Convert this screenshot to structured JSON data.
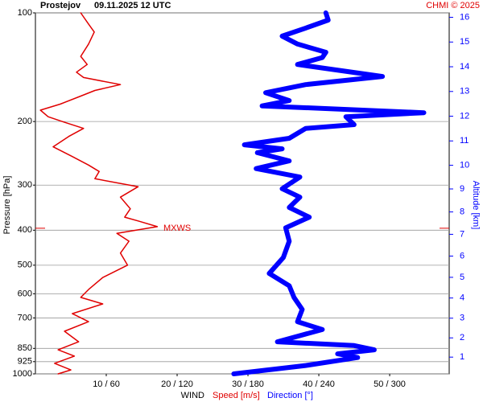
{
  "chart_data": {
    "type": "line",
    "title": "Prostejov",
    "subtitle": "09.11.2025 12 UTC",
    "credit": "CHMI © 2025",
    "ylabel": "Pressure [hPa]",
    "y2label": "Altitude [km]",
    "xlabel": "WIND",
    "ylim": [
      100,
      1000
    ],
    "ylog": true,
    "yticks": [
      100,
      200,
      300,
      400,
      500,
      600,
      700,
      850,
      925,
      1000
    ],
    "grid": true,
    "xlim": [
      0,
      58.4
    ],
    "x2lim": [
      0,
      350.5
    ],
    "xticks": [
      {
        "value": 10,
        "label": "10 / 60"
      },
      {
        "value": 20,
        "label": "20 / 120"
      },
      {
        "value": 30,
        "label": "30 / 180"
      },
      {
        "value": 40,
        "label": "40 / 240"
      },
      {
        "value": 50,
        "label": "50 / 300"
      }
    ],
    "y2scale": "standard-atmosphere",
    "y2color": "#0000ff",
    "y2ticks": [
      1,
      2,
      3,
      4,
      5,
      6,
      7,
      8,
      9,
      10,
      11,
      12,
      13,
      14,
      15,
      16
    ],
    "annotation": {
      "text": "MXWS",
      "pressure": 395,
      "color": "#e00000"
    },
    "series": [
      {
        "name": "Speed [m/s]",
        "color": "#e00000",
        "width": 1.5,
        "values": [
          6.4,
          7.5,
          8.3,
          7.5,
          6.4,
          7.3,
          5.8,
          6.8,
          12,
          8.4,
          6.4,
          3.5,
          0.7,
          1.8,
          4.1,
          6.8,
          4.7,
          2.5,
          5.2,
          7.5,
          9,
          8.4,
          14.5,
          12,
          13.4,
          12.6,
          14.5,
          17.2,
          11.5,
          13.2,
          12,
          13,
          9.5,
          7.5,
          6.4,
          9.5,
          5.2,
          7.5,
          4.1,
          6.1,
          3.2,
          5.5,
          2.7,
          5,
          3.2
        ],
        "pressure": [
          100,
          107.4,
          113,
          122,
          132,
          139,
          146,
          151,
          158,
          164,
          170,
          179,
          186,
          194,
          201,
          209,
          220,
          235,
          250,
          264,
          275,
          288,
          303,
          324,
          349,
          368,
          377,
          391,
          408,
          429,
          463,
          500,
          541,
          584,
          614,
          640,
          681,
          717,
          762,
          815,
          858,
          893,
          935,
          975,
          1000
        ]
      },
      {
        "name": "Direction [°]",
        "color": "#0000ff",
        "width": 6,
        "axis": "x2",
        "values": [
          246,
          248,
          229,
          209,
          222,
          246,
          243,
          222,
          294,
          229,
          195,
          215,
          192,
          329,
          263,
          270,
          229,
          215,
          177,
          209,
          188,
          215,
          187,
          224,
          209,
          224,
          215,
          232,
          212,
          215,
          210,
          198,
          215,
          219,
          226,
          222,
          243,
          205,
          270,
          287,
          256,
          273,
          229,
          168
        ],
        "pressure": [
          100,
          104.7,
          110.2,
          116,
          122,
          128.6,
          133,
          139,
          150,
          158,
          166.4,
          175,
          181,
          189.1,
          194,
          204,
          209,
          222.5,
          232,
          238,
          244,
          257,
          270,
          285,
          307,
          324,
          346,
          368,
          394,
          429,
          476,
          527,
          570,
          614,
          663,
          717,
          754,
          815,
          835,
          858,
          880,
          901,
          948,
          1000
        ]
      }
    ]
  }
}
